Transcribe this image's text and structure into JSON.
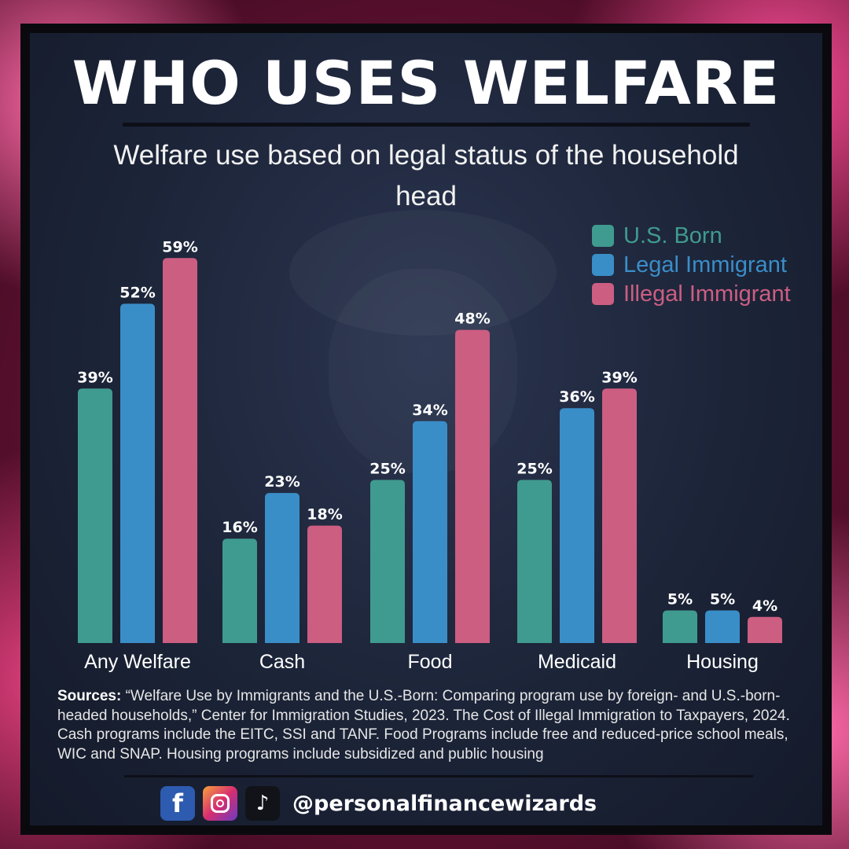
{
  "title": "WHO USES WELFARE",
  "subtitle": "Welfare use based on legal status of the household head",
  "colors": {
    "us_born": "#3f9b8f",
    "legal_immigrant": "#3a8ec8",
    "illegal_immigrant": "#cc5e82"
  },
  "chart_data": {
    "type": "bar",
    "categories": [
      "Any Welfare",
      "Cash",
      "Food",
      "Medicaid",
      "Housing"
    ],
    "series": [
      {
        "name": "U.S. Born",
        "values": [
          39,
          16,
          25,
          25,
          5
        ],
        "color": "#3f9b8f"
      },
      {
        "name": "Legal Immigrant",
        "values": [
          52,
          23,
          34,
          36,
          5
        ],
        "color": "#3a8ec8"
      },
      {
        "name": "Illegal Immigrant",
        "values": [
          59,
          18,
          48,
          39,
          4
        ],
        "color": "#cc5e82"
      }
    ],
    "data_labels": [
      [
        "39%",
        "16%",
        "25%",
        "25%",
        "5%"
      ],
      [
        "52%",
        "23%",
        "34%",
        "36%",
        "5%"
      ],
      [
        "59%",
        "18%",
        "48%",
        "39%",
        "4%"
      ]
    ],
    "ylim": [
      0,
      60
    ],
    "grid": false,
    "legend_position": "top-right"
  },
  "sources": {
    "label": "Sources:",
    "text": " “Welfare Use by Immigrants and the U.S.-Born: Comparing program use by foreign- and U.S.-born-headed households,” Center for Immigration Studies, 2023. The Cost of Illegal Immigration to Taxpayers, 2024. Cash programs include the EITC, SSI and TANF. Food Programs include free and reduced-price school meals, WIC and SNAP. Housing programs include subsidized and public housing"
  },
  "social": {
    "facebook_icon": "facebook-icon",
    "facebook_glyph": "f",
    "instagram_icon": "instagram-icon",
    "tiktok_icon": "tiktok-icon",
    "tiktok_glyph": "♪",
    "handle": "@personalfinancewizards"
  }
}
